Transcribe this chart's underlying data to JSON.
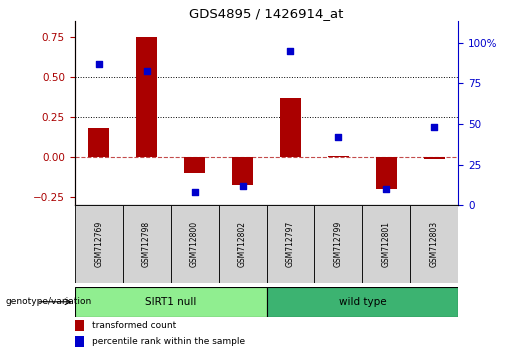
{
  "title": "GDS4895 / 1426914_at",
  "samples": [
    "GSM712769",
    "GSM712798",
    "GSM712800",
    "GSM712802",
    "GSM712797",
    "GSM712799",
    "GSM712801",
    "GSM712803"
  ],
  "transformed_count": [
    0.18,
    0.75,
    -0.1,
    -0.17,
    0.37,
    0.01,
    -0.2,
    -0.01
  ],
  "percentile_rank": [
    87,
    83,
    8,
    12,
    95,
    42,
    10,
    48
  ],
  "groups": [
    {
      "label": "SIRT1 null",
      "start": 0,
      "end": 4,
      "color": "#90EE90"
    },
    {
      "label": "wild type",
      "start": 4,
      "end": 8,
      "color": "#3CB371"
    }
  ],
  "group_label": "genotype/variation",
  "bar_color": "#AA0000",
  "dot_color": "#0000CC",
  "ylim_left": [
    -0.3,
    0.85
  ],
  "ylim_right": [
    0,
    113.33
  ],
  "yticks_left": [
    -0.25,
    0,
    0.25,
    0.5,
    0.75
  ],
  "yticks_right": [
    0,
    25,
    50,
    75,
    100
  ],
  "hlines": [
    0.25,
    0.5
  ],
  "zero_line": 0,
  "legend_items": [
    {
      "color": "#AA0000",
      "label": "transformed count"
    },
    {
      "color": "#0000CC",
      "label": "percentile rank within the sample"
    }
  ]
}
